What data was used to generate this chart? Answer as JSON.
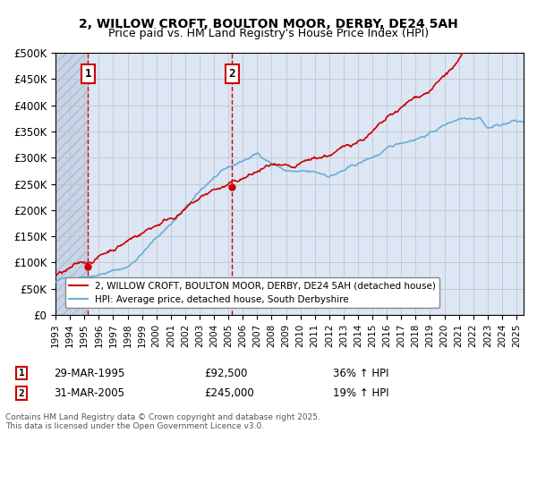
{
  "title_line1": "2, WILLOW CROFT, BOULTON MOOR, DERBY, DE24 5AH",
  "title_line2": "Price paid vs. HM Land Registry's House Price Index (HPI)",
  "ylabel_ticks": [
    "£0",
    "£50K",
    "£100K",
    "£150K",
    "£200K",
    "£250K",
    "£300K",
    "£350K",
    "£400K",
    "£450K",
    "£500K"
  ],
  "ytick_values": [
    0,
    50000,
    100000,
    150000,
    200000,
    250000,
    300000,
    350000,
    400000,
    450000,
    500000
  ],
  "ylim": [
    0,
    500000
  ],
  "xlim_start": 1993.0,
  "xlim_end": 2025.5,
  "sale1_year": 1995.24,
  "sale1_price": 92500,
  "sale1_label": "1",
  "sale1_date": "29-MAR-1995",
  "sale1_pct": "36%",
  "sale2_year": 2005.24,
  "sale2_price": 245000,
  "sale2_label": "2",
  "sale2_date": "31-MAR-2005",
  "sale2_pct": "19%",
  "hpi_color": "#6baed6",
  "price_color": "#cc0000",
  "vline_color": "#cc0000",
  "bg_hatch_color": "#d0d8e8",
  "grid_color": "#c0c0c0",
  "legend_label_price": "2, WILLOW CROFT, BOULTON MOOR, DERBY, DE24 5AH (detached house)",
  "legend_label_hpi": "HPI: Average price, detached house, South Derbyshire",
  "footnote": "Contains HM Land Registry data © Crown copyright and database right 2025.\nThis data is licensed under the Open Government Licence v3.0.",
  "xtick_years": [
    1993,
    1994,
    1995,
    1996,
    1997,
    1998,
    1999,
    2000,
    2001,
    2002,
    2003,
    2004,
    2005,
    2006,
    2007,
    2008,
    2009,
    2010,
    2011,
    2012,
    2013,
    2014,
    2015,
    2016,
    2017,
    2018,
    2019,
    2020,
    2021,
    2022,
    2023,
    2024,
    2025
  ]
}
